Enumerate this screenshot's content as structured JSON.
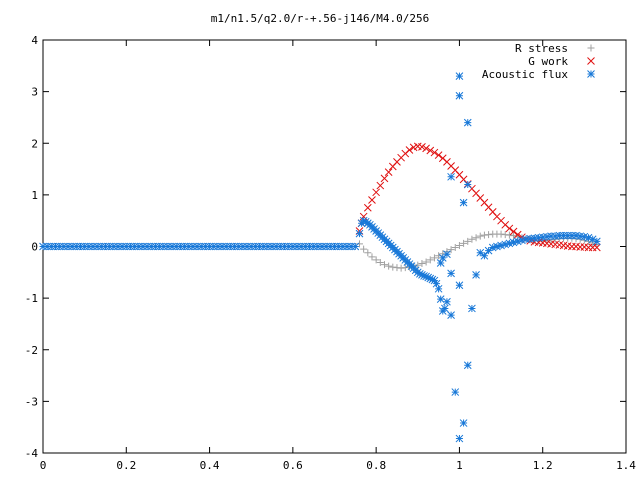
{
  "chart_data": {
    "type": "scatter",
    "title": "m1/n1.5/q2.0/r-+.56-j146/M4.0/256",
    "xlabel": "",
    "ylabel": "",
    "xlim": [
      0,
      1.4
    ],
    "ylim": [
      -4,
      4
    ],
    "xticks": [
      0,
      0.2,
      0.4,
      0.6,
      0.8,
      1,
      1.2,
      1.4
    ],
    "xtick_labels": [
      "0",
      "0.2",
      "0.4",
      "0.6",
      "0.8",
      "1",
      "1.2",
      "1.4"
    ],
    "yticks": [
      -4,
      -3,
      -2,
      -1,
      0,
      1,
      2,
      3,
      4
    ],
    "ytick_labels": [
      "-4",
      "-3",
      "-2",
      "-1",
      "0",
      "1",
      "2",
      "3",
      "4"
    ],
    "grid": false,
    "legend_position": "top-right",
    "series": [
      {
        "name": "R stress",
        "marker": "plus",
        "color": "#a0a0a0",
        "points": [
          [
            0.76,
            0.05
          ],
          [
            0.77,
            -0.05
          ],
          [
            0.78,
            -0.12
          ],
          [
            0.79,
            -0.2
          ],
          [
            0.8,
            -0.26
          ],
          [
            0.81,
            -0.31
          ],
          [
            0.82,
            -0.35
          ],
          [
            0.83,
            -0.38
          ],
          [
            0.84,
            -0.4
          ],
          [
            0.85,
            -0.41
          ],
          [
            0.86,
            -0.42
          ],
          [
            0.87,
            -0.41
          ],
          [
            0.88,
            -0.4
          ],
          [
            0.89,
            -0.38
          ],
          [
            0.9,
            -0.36
          ],
          [
            0.91,
            -0.33
          ],
          [
            0.92,
            -0.3
          ],
          [
            0.93,
            -0.26
          ],
          [
            0.94,
            -0.22
          ],
          [
            0.95,
            -0.18
          ],
          [
            0.96,
            -0.14
          ],
          [
            0.97,
            -0.1
          ],
          [
            0.98,
            -0.06
          ],
          [
            0.99,
            -0.02
          ],
          [
            1.0,
            0.02
          ],
          [
            1.01,
            0.06
          ],
          [
            1.02,
            0.1
          ],
          [
            1.03,
            0.14
          ],
          [
            1.04,
            0.17
          ],
          [
            1.05,
            0.2
          ],
          [
            1.06,
            0.22
          ],
          [
            1.07,
            0.23
          ],
          [
            1.08,
            0.24
          ],
          [
            1.09,
            0.24
          ],
          [
            1.1,
            0.24
          ],
          [
            1.11,
            0.23
          ],
          [
            1.12,
            0.22
          ],
          [
            1.13,
            0.21
          ],
          [
            1.14,
            0.19
          ],
          [
            1.15,
            0.17
          ],
          [
            1.16,
            0.15
          ],
          [
            1.17,
            0.13
          ],
          [
            1.18,
            0.12
          ],
          [
            1.19,
            0.11
          ],
          [
            1.2,
            0.11
          ],
          [
            1.21,
            0.12
          ],
          [
            1.22,
            0.13
          ],
          [
            1.23,
            0.14
          ],
          [
            1.24,
            0.15
          ],
          [
            1.25,
            0.16
          ],
          [
            1.26,
            0.16
          ],
          [
            1.27,
            0.16
          ],
          [
            1.28,
            0.15
          ],
          [
            1.29,
            0.14
          ],
          [
            1.3,
            0.12
          ],
          [
            1.31,
            0.1
          ],
          [
            1.32,
            0.07
          ],
          [
            1.33,
            0.04
          ]
        ]
      },
      {
        "name": "G work",
        "marker": "cross",
        "color": "#e01010",
        "points": [
          [
            0.76,
            0.3
          ],
          [
            0.765,
            0.45
          ],
          [
            0.77,
            0.58
          ],
          [
            0.78,
            0.75
          ],
          [
            0.79,
            0.9
          ],
          [
            0.8,
            1.05
          ],
          [
            0.81,
            1.18
          ],
          [
            0.82,
            1.32
          ],
          [
            0.83,
            1.44
          ],
          [
            0.84,
            1.55
          ],
          [
            0.85,
            1.64
          ],
          [
            0.86,
            1.72
          ],
          [
            0.87,
            1.8
          ],
          [
            0.88,
            1.87
          ],
          [
            0.89,
            1.92
          ],
          [
            0.9,
            1.94
          ],
          [
            0.91,
            1.93
          ],
          [
            0.92,
            1.9
          ],
          [
            0.93,
            1.86
          ],
          [
            0.94,
            1.82
          ],
          [
            0.95,
            1.77
          ],
          [
            0.96,
            1.71
          ],
          [
            0.97,
            1.64
          ],
          [
            0.98,
            1.56
          ],
          [
            0.99,
            1.48
          ],
          [
            1.0,
            1.39
          ],
          [
            1.01,
            1.3
          ],
          [
            1.02,
            1.21
          ],
          [
            1.03,
            1.12
          ],
          [
            1.04,
            1.03
          ],
          [
            1.05,
            0.94
          ],
          [
            1.06,
            0.85
          ],
          [
            1.07,
            0.76
          ],
          [
            1.08,
            0.67
          ],
          [
            1.09,
            0.58
          ],
          [
            1.1,
            0.5
          ],
          [
            1.11,
            0.42
          ],
          [
            1.12,
            0.35
          ],
          [
            1.13,
            0.29
          ],
          [
            1.14,
            0.23
          ],
          [
            1.15,
            0.18
          ],
          [
            1.16,
            0.14
          ],
          [
            1.17,
            0.11
          ],
          [
            1.18,
            0.09
          ],
          [
            1.19,
            0.08
          ],
          [
            1.2,
            0.07
          ],
          [
            1.21,
            0.06
          ],
          [
            1.22,
            0.05
          ],
          [
            1.23,
            0.04
          ],
          [
            1.24,
            0.03
          ],
          [
            1.25,
            0.02
          ],
          [
            1.26,
            0.01
          ],
          [
            1.27,
            0.0
          ],
          [
            1.28,
            0.0
          ],
          [
            1.29,
            -0.01
          ],
          [
            1.3,
            -0.01
          ],
          [
            1.31,
            -0.02
          ],
          [
            1.32,
            -0.02
          ],
          [
            1.33,
            -0.02
          ]
        ]
      },
      {
        "name": "Acoustic flux",
        "marker": "star",
        "color": "#1878d8",
        "points": [
          [
            0.0,
            0.0
          ],
          [
            0.01,
            0.0
          ],
          [
            0.02,
            0.0
          ],
          [
            0.03,
            0.0
          ],
          [
            0.04,
            0.0
          ],
          [
            0.05,
            0.0
          ],
          [
            0.06,
            0.0
          ],
          [
            0.07,
            0.0
          ],
          [
            0.08,
            0.0
          ],
          [
            0.09,
            0.0
          ],
          [
            0.1,
            0.0
          ],
          [
            0.11,
            0.0
          ],
          [
            0.12,
            0.0
          ],
          [
            0.13,
            0.0
          ],
          [
            0.14,
            0.0
          ],
          [
            0.15,
            0.0
          ],
          [
            0.16,
            0.0
          ],
          [
            0.17,
            0.0
          ],
          [
            0.18,
            0.0
          ],
          [
            0.19,
            0.0
          ],
          [
            0.2,
            0.0
          ],
          [
            0.21,
            0.0
          ],
          [
            0.22,
            0.0
          ],
          [
            0.23,
            0.0
          ],
          [
            0.24,
            0.0
          ],
          [
            0.25,
            0.0
          ],
          [
            0.26,
            0.0
          ],
          [
            0.27,
            0.0
          ],
          [
            0.28,
            0.0
          ],
          [
            0.29,
            0.0
          ],
          [
            0.3,
            0.0
          ],
          [
            0.31,
            0.0
          ],
          [
            0.32,
            0.0
          ],
          [
            0.33,
            0.0
          ],
          [
            0.34,
            0.0
          ],
          [
            0.35,
            0.0
          ],
          [
            0.36,
            0.0
          ],
          [
            0.37,
            0.0
          ],
          [
            0.38,
            0.0
          ],
          [
            0.39,
            0.0
          ],
          [
            0.4,
            0.0
          ],
          [
            0.41,
            0.0
          ],
          [
            0.42,
            0.0
          ],
          [
            0.43,
            0.0
          ],
          [
            0.44,
            0.0
          ],
          [
            0.45,
            0.0
          ],
          [
            0.46,
            0.0
          ],
          [
            0.47,
            0.0
          ],
          [
            0.48,
            0.0
          ],
          [
            0.49,
            0.0
          ],
          [
            0.5,
            0.0
          ],
          [
            0.51,
            0.0
          ],
          [
            0.52,
            0.0
          ],
          [
            0.53,
            0.0
          ],
          [
            0.54,
            0.0
          ],
          [
            0.55,
            0.0
          ],
          [
            0.56,
            0.0
          ],
          [
            0.57,
            0.0
          ],
          [
            0.58,
            0.0
          ],
          [
            0.59,
            0.0
          ],
          [
            0.6,
            0.0
          ],
          [
            0.61,
            0.0
          ],
          [
            0.62,
            0.0
          ],
          [
            0.63,
            0.0
          ],
          [
            0.64,
            0.0
          ],
          [
            0.65,
            0.0
          ],
          [
            0.66,
            0.0
          ],
          [
            0.67,
            0.0
          ],
          [
            0.68,
            0.0
          ],
          [
            0.69,
            0.0
          ],
          [
            0.7,
            0.0
          ],
          [
            0.71,
            0.0
          ],
          [
            0.72,
            0.0
          ],
          [
            0.73,
            0.0
          ],
          [
            0.74,
            0.0
          ],
          [
            0.75,
            0.0
          ],
          [
            0.76,
            0.25
          ],
          [
            0.765,
            0.45
          ],
          [
            0.77,
            0.5
          ],
          [
            0.775,
            0.48
          ],
          [
            0.78,
            0.45
          ],
          [
            0.785,
            0.42
          ],
          [
            0.79,
            0.38
          ],
          [
            0.795,
            0.34
          ],
          [
            0.8,
            0.3
          ],
          [
            0.805,
            0.26
          ],
          [
            0.81,
            0.22
          ],
          [
            0.815,
            0.18
          ],
          [
            0.82,
            0.14
          ],
          [
            0.825,
            0.1
          ],
          [
            0.83,
            0.06
          ],
          [
            0.835,
            0.02
          ],
          [
            0.84,
            -0.02
          ],
          [
            0.845,
            -0.06
          ],
          [
            0.85,
            -0.1
          ],
          [
            0.855,
            -0.14
          ],
          [
            0.86,
            -0.18
          ],
          [
            0.865,
            -0.22
          ],
          [
            0.87,
            -0.26
          ],
          [
            0.875,
            -0.3
          ],
          [
            0.88,
            -0.34
          ],
          [
            0.885,
            -0.38
          ],
          [
            0.89,
            -0.42
          ],
          [
            0.895,
            -0.46
          ],
          [
            0.9,
            -0.5
          ],
          [
            0.905,
            -0.53
          ],
          [
            0.91,
            -0.55
          ],
          [
            0.915,
            -0.57
          ],
          [
            0.92,
            -0.58
          ],
          [
            0.925,
            -0.6
          ],
          [
            0.93,
            -0.62
          ],
          [
            0.935,
            -0.64
          ],
          [
            0.94,
            -0.66
          ],
          [
            0.945,
            -0.72
          ],
          [
            0.95,
            -0.82
          ],
          [
            0.955,
            -1.02
          ],
          [
            0.96,
            -1.25
          ],
          [
            0.965,
            -1.2
          ],
          [
            0.97,
            -1.07
          ],
          [
            0.98,
            -1.33
          ],
          [
            0.99,
            -2.82
          ],
          [
            1.0,
            -3.72
          ],
          [
            1.01,
            -3.42
          ],
          [
            1.02,
            -2.3
          ],
          [
            1.03,
            -1.2
          ],
          [
            1.04,
            -0.55
          ],
          [
            1.05,
            -0.12
          ],
          [
            0.955,
            -0.32
          ],
          [
            0.96,
            -0.22
          ],
          [
            0.97,
            -0.15
          ],
          [
            0.98,
            -0.52
          ],
          [
            1.0,
            -0.75
          ],
          [
            0.98,
            1.35
          ],
          [
            1.01,
            0.85
          ],
          [
            1.02,
            1.2
          ],
          [
            1.0,
            2.92
          ],
          [
            1.02,
            2.4
          ],
          [
            1.0,
            3.3
          ],
          [
            1.06,
            -0.18
          ],
          [
            1.07,
            -0.08
          ],
          [
            1.08,
            -0.02
          ],
          [
            1.09,
            0.0
          ],
          [
            1.1,
            0.02
          ],
          [
            1.11,
            0.04
          ],
          [
            1.12,
            0.06
          ],
          [
            1.13,
            0.08
          ],
          [
            1.14,
            0.1
          ],
          [
            1.15,
            0.12
          ],
          [
            1.16,
            0.14
          ],
          [
            1.17,
            0.15
          ],
          [
            1.18,
            0.16
          ],
          [
            1.19,
            0.17
          ],
          [
            1.2,
            0.18
          ],
          [
            1.21,
            0.19
          ],
          [
            1.22,
            0.2
          ],
          [
            1.23,
            0.2
          ],
          [
            1.24,
            0.21
          ],
          [
            1.25,
            0.21
          ],
          [
            1.26,
            0.21
          ],
          [
            1.27,
            0.21
          ],
          [
            1.28,
            0.21
          ],
          [
            1.29,
            0.2
          ],
          [
            1.3,
            0.19
          ],
          [
            1.31,
            0.17
          ],
          [
            1.32,
            0.14
          ],
          [
            1.33,
            0.1
          ]
        ]
      }
    ]
  }
}
